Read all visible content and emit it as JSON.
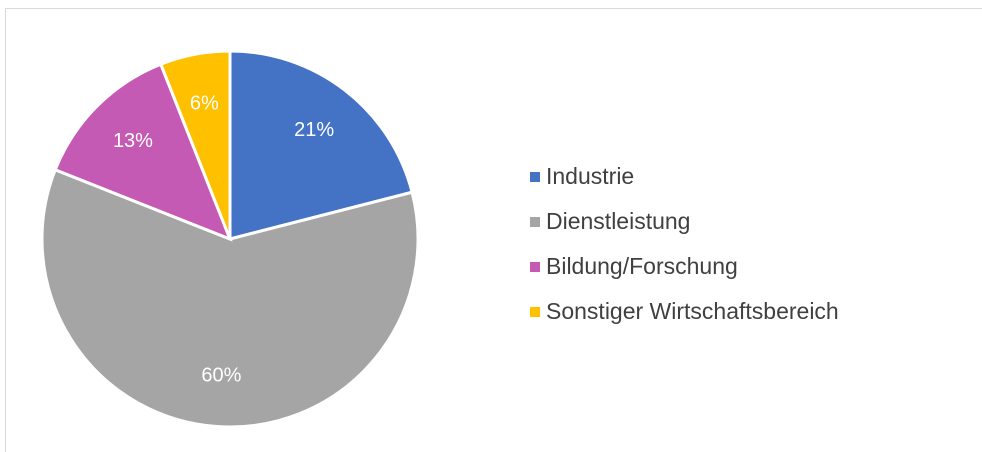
{
  "chart_data": {
    "type": "pie",
    "categories": [
      "Industrie",
      "Dienstleistung",
      "Bildung/Forschung",
      "Sonstiger Wirtschaftsbereich"
    ],
    "values": [
      21,
      60,
      13,
      6
    ],
    "value_labels": [
      "21%",
      "60%",
      "13%",
      "6%"
    ],
    "colors": [
      "#4472c4",
      "#a5a5a5",
      "#c55ab5",
      "#ffc000"
    ],
    "legend": "right"
  }
}
